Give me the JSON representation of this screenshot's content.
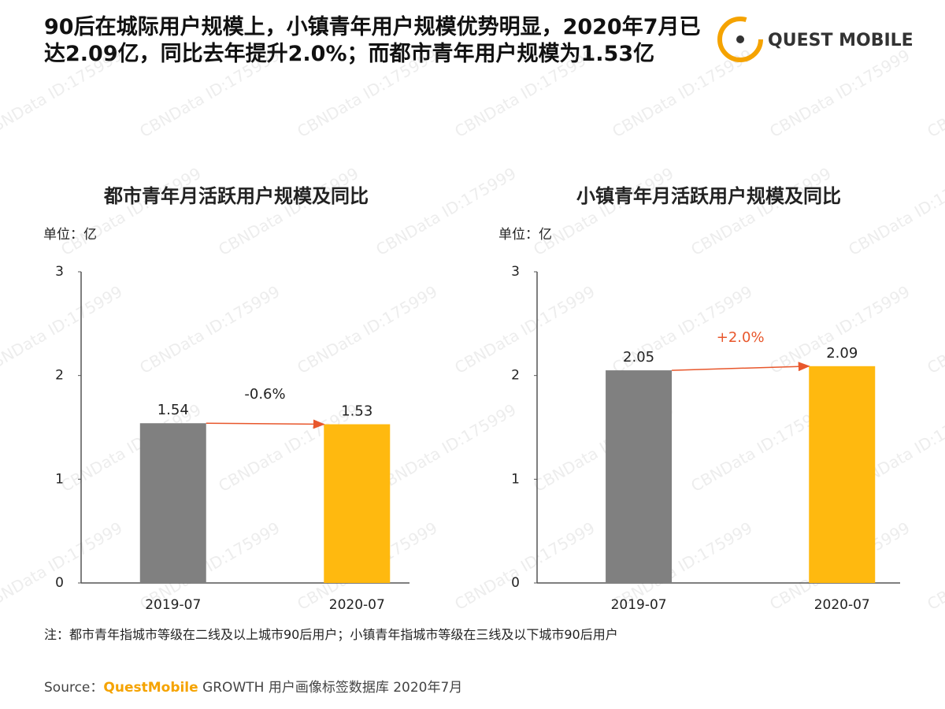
{
  "headline": "90后在城际用户规模上，小镇青年用户规模优势明显，2020年7月已达2.09亿，同比去年提升2.0%；而都市青年用户规模为1.53亿",
  "logo": "QUEST MOBILE",
  "watermark": "CBNData ID:175999",
  "note": "注：都市青年指城市等级在二线及以上城市90后用户；小镇青年指城市等级在三线及以下城市90后用户",
  "source": {
    "label": "Source：",
    "brand": "QuestMobile",
    "text": " GROWTH 用户画像标签数据库 2020年7月"
  },
  "chart_data": [
    {
      "type": "bar",
      "title": "都市青年月活跃用户规模及同比",
      "unit_label": "单位：亿",
      "categories": [
        "2019-07",
        "2020-07"
      ],
      "values": [
        1.54,
        1.53
      ],
      "colors": [
        "#808080",
        "#ffb90f"
      ],
      "ylim": [
        0,
        3
      ],
      "yticks": [
        0,
        1,
        2,
        3
      ],
      "grid": false,
      "annotation": {
        "text": "-0.6%",
        "color": "#e8572c"
      }
    },
    {
      "type": "bar",
      "title": "小镇青年月活跃用户规模及同比",
      "unit_label": "单位：亿",
      "categories": [
        "2019-07",
        "2020-07"
      ],
      "values": [
        2.05,
        2.09
      ],
      "colors": [
        "#808080",
        "#ffb90f"
      ],
      "ylim": [
        0,
        3
      ],
      "yticks": [
        0,
        1,
        2,
        3
      ],
      "grid": false,
      "annotation": {
        "text": "+2.0%",
        "color": "#e8572c"
      }
    }
  ]
}
